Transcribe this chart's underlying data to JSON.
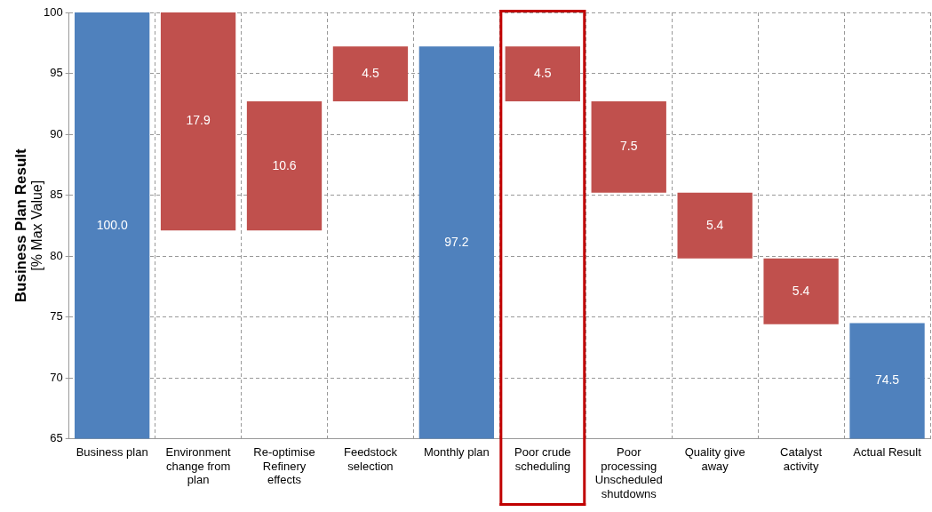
{
  "chart_data": {
    "type": "bar",
    "categories": [
      "Business plan",
      "Environment change from plan",
      "Re-optimise Refinery effects",
      "Feedstock selection",
      "Monthly plan",
      "Poor crude scheduling",
      "Poor processing Unscheduled shutdowns",
      "Quality give away",
      "Catalyst activity",
      "Actual Result"
    ],
    "values": [
      100,
      17.9,
      10.6,
      4.5,
      97.2,
      4.5,
      7.5,
      5.4,
      5.4,
      74.5
    ],
    "base": [
      null,
      82.1,
      82.1,
      92.7,
      null,
      92.7,
      85.2,
      79.8,
      74.4,
      null
    ],
    "colors": [
      "#4f81bd",
      "#c0504d",
      "#c0504d",
      "#c0504d",
      "#4f81bd",
      "#c0504d",
      "#c0504d",
      "#c0504d",
      "#c0504d",
      "#4f81bd"
    ],
    "value_labels": [
      "100.0",
      "17.9",
      "10.6",
      "4.5",
      "97.2",
      "4.5",
      "7.5",
      "5.4",
      "5.4",
      "74.5"
    ],
    "ylabel": "Business Plan Result\n[% Max Value]",
    "ylim": [
      65,
      100
    ],
    "yticks": [
      65,
      70,
      75,
      80,
      85,
      90,
      95,
      100
    ],
    "grid": true,
    "legend": false
  }
}
